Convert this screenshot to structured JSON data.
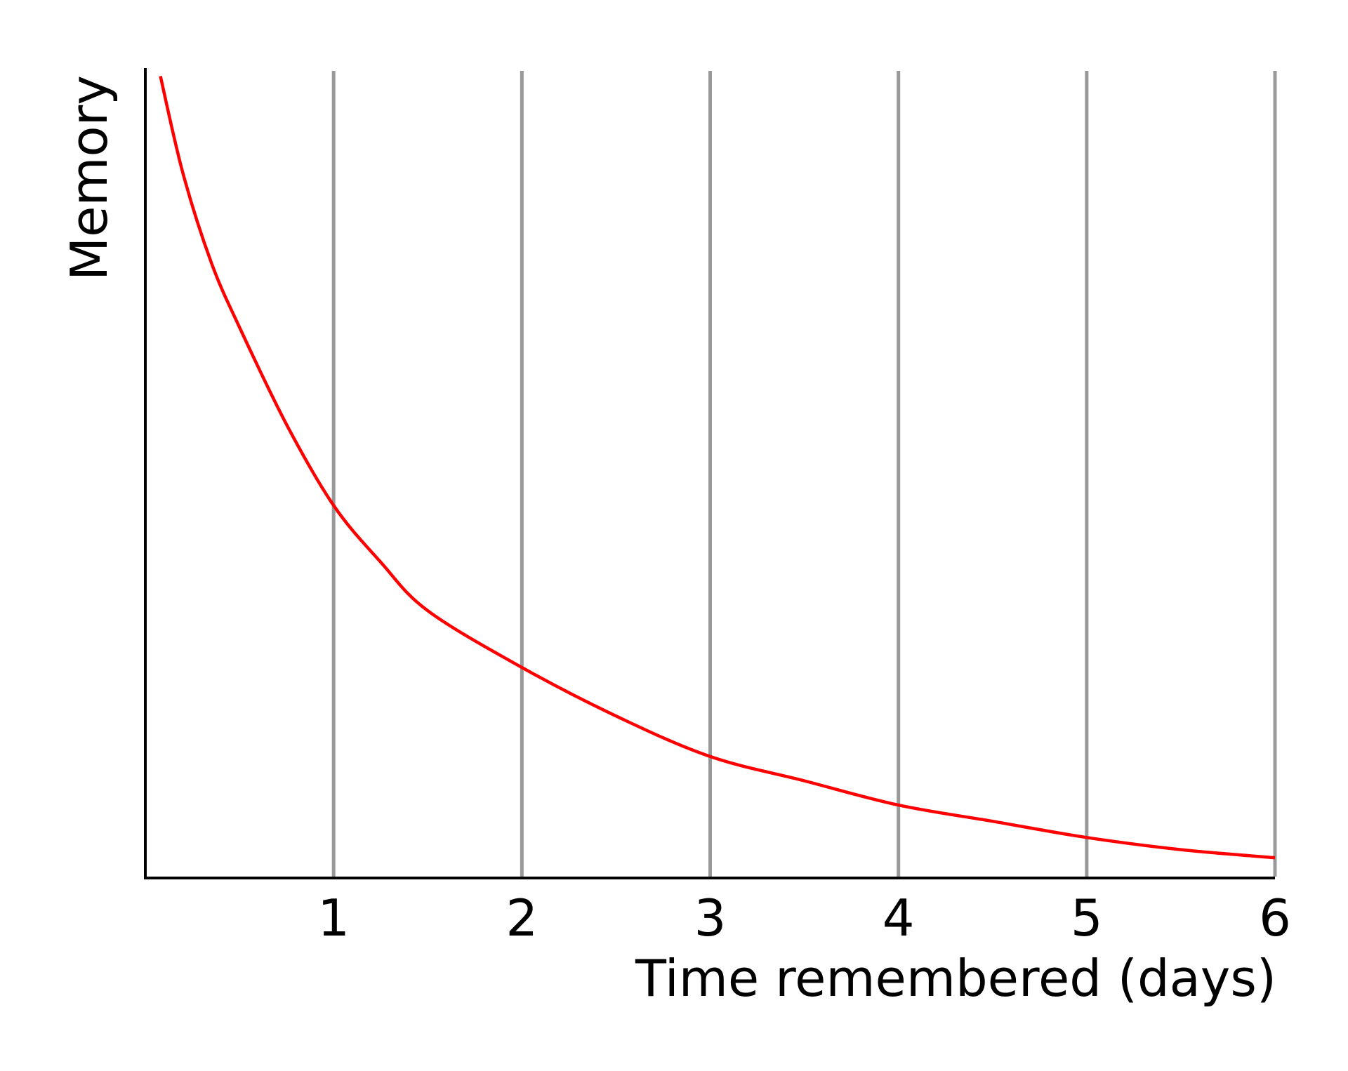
{
  "chart_data": {
    "type": "line",
    "xlabel": "Time remembered (days)",
    "ylabel": "Memory",
    "title": "",
    "xlim": [
      0,
      6
    ],
    "ylim": [
      0,
      1
    ],
    "x_ticks": [
      "1",
      "2",
      "3",
      "4",
      "5",
      "6"
    ],
    "grid": "vertical",
    "series": [
      {
        "color": "#ff0000",
        "x": [
          0.08,
          0.2,
          0.35,
          0.5,
          0.75,
          1.0,
          1.25,
          1.5,
          2.0,
          2.5,
          3.0,
          3.5,
          4.0,
          4.5,
          5.0,
          5.5,
          6.0
        ],
        "y": [
          0.99,
          0.87,
          0.76,
          0.68,
          0.56,
          0.46,
          0.39,
          0.33,
          0.26,
          0.2,
          0.15,
          0.12,
          0.09,
          0.07,
          0.05,
          0.035,
          0.025
        ]
      }
    ],
    "colors": {
      "axis": "#000000",
      "grid": "#999999",
      "curve": "#ff0000"
    }
  }
}
